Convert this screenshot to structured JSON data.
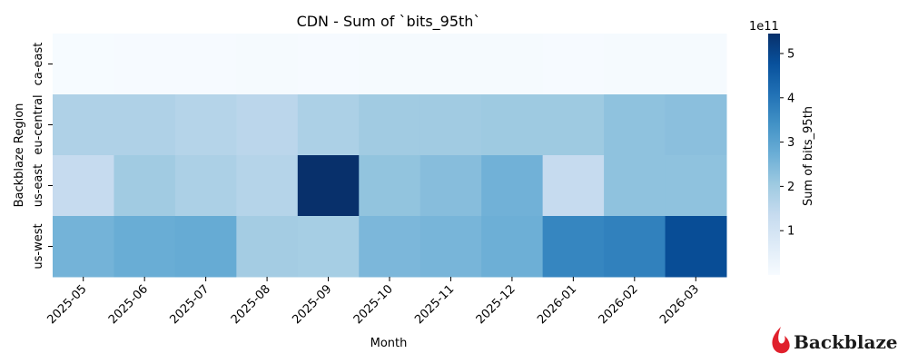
{
  "chart_data": {
    "type": "heatmap",
    "title": "CDN - Sum of `bits_95th`",
    "xlabel": "Month",
    "ylabel": "Backblaze Region",
    "x_categories": [
      "2025-05",
      "2025-06",
      "2025-07",
      "2025-08",
      "2025-09",
      "2025-10",
      "2025-11",
      "2025-12",
      "2026-01",
      "2026-02",
      "2026-03"
    ],
    "y_categories": [
      "ca-east",
      "eu-central",
      "us-east",
      "us-west"
    ],
    "values": [
      [
        2000000000.0,
        3000000000.0,
        4000000000.0,
        5000000000.0,
        4000000000.0,
        5000000000.0,
        5000000000.0,
        5000000000.0,
        4000000000.0,
        5000000000.0,
        5000000000.0
      ],
      [
        175000000000.0,
        175000000000.0,
        165000000000.0,
        155000000000.0,
        180000000000.0,
        200000000000.0,
        200000000000.0,
        205000000000.0,
        205000000000.0,
        225000000000.0,
        230000000000.0
      ],
      [
        135000000000.0,
        200000000000.0,
        180000000000.0,
        165000000000.0,
        545000000000.0,
        220000000000.0,
        235000000000.0,
        265000000000.0,
        135000000000.0,
        225000000000.0,
        225000000000.0
      ],
      [
        260000000000.0,
        275000000000.0,
        280000000000.0,
        195000000000.0,
        190000000000.0,
        250000000000.0,
        255000000000.0,
        270000000000.0,
        365000000000.0,
        375000000000.0,
        485000000000.0
      ]
    ],
    "colorbar": {
      "label": "Sum of bits_95th",
      "multiplier_label": "1e11",
      "min": 0,
      "max": 545000000000.0,
      "ticks": [
        1,
        2,
        3,
        4,
        5
      ]
    },
    "colormap": "Blues"
  },
  "logo": {
    "text": "Backblaze",
    "flame_color": "#e0202c"
  }
}
